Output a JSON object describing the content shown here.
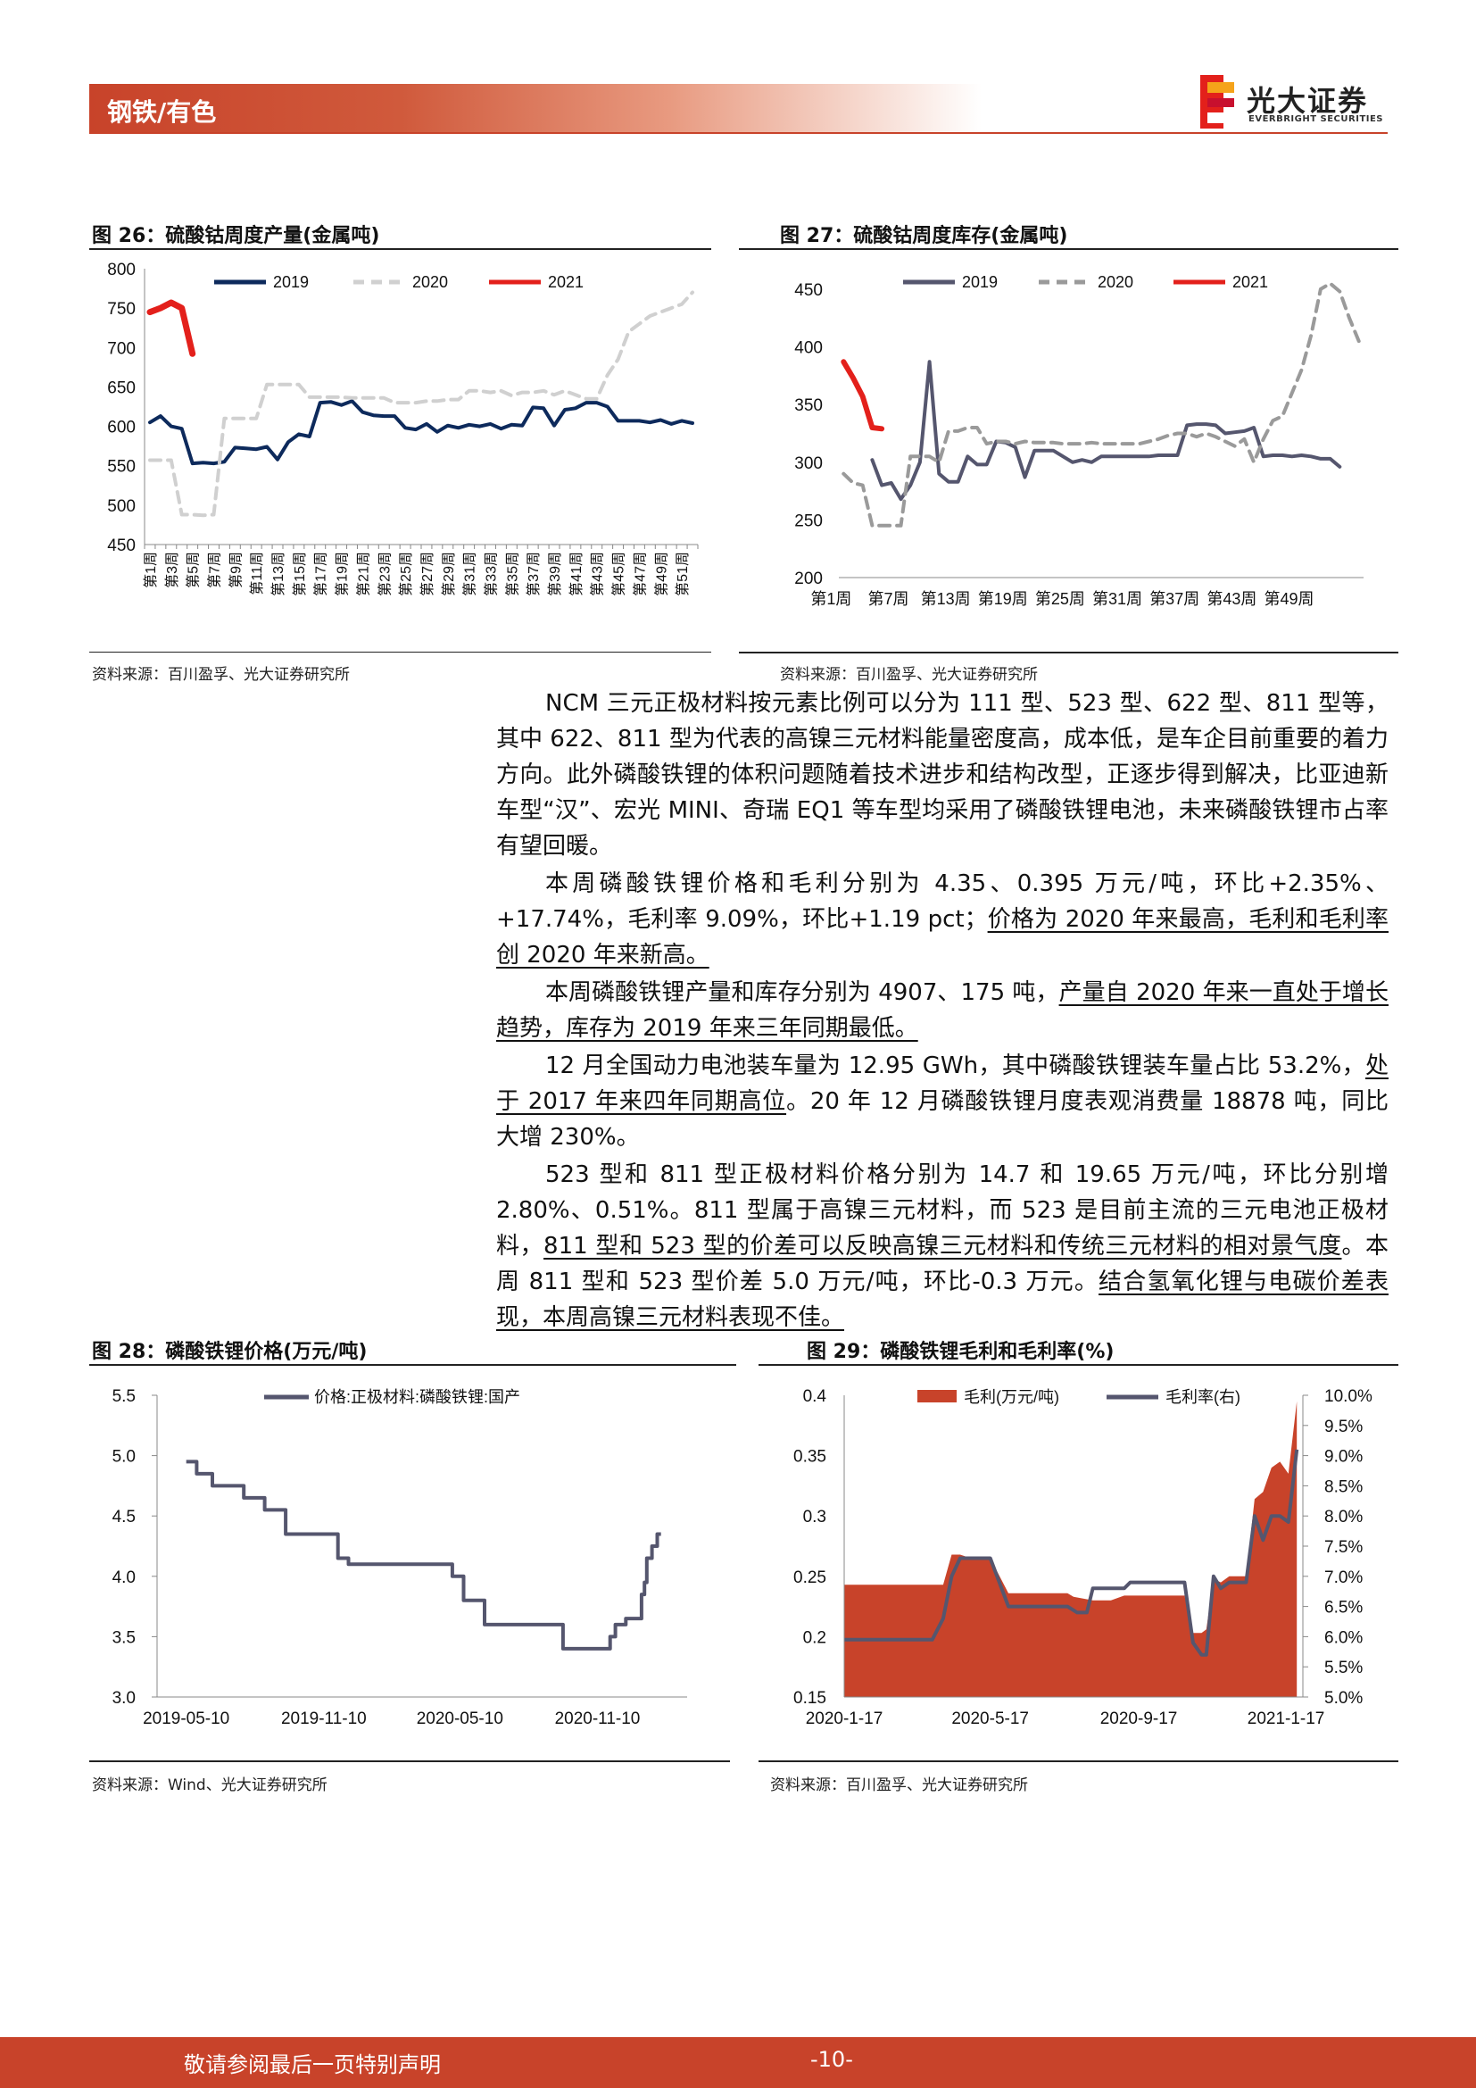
{
  "header": {
    "section": "钢铁/有色",
    "brand_cn": "光大证券",
    "brand_en": "EVERBRIGHT SECURITIES"
  },
  "colors": {
    "accent": "#c8432a",
    "navy": "#0d2a5c",
    "gray_line": "#55566e",
    "light_gray": "#d0d0d0",
    "red": "#e3201b",
    "fill_red": "#c8432a"
  },
  "figures": {
    "fig26": {
      "title": "图 26：硫酸钴周度产量(金属吨)",
      "source": "资料来源：百川盈孚、光大证券研究所"
    },
    "fig27": {
      "title": "图 27：硫酸钴周度库存(金属吨)",
      "source": "资料来源：百川盈孚、光大证券研究所"
    },
    "fig28": {
      "title": "图 28：磷酸铁锂价格(万元/吨)",
      "source": "资料来源：Wind、光大证券研究所"
    },
    "fig29": {
      "title": "图 29：磷酸铁锂毛利和毛利率(%)",
      "source": "资料来源：百川盈孚、光大证券研究所"
    }
  },
  "body": {
    "p1": "NCM 三元正极材料按元素比例可以分为 111 型、523 型、622 型、811 型等，其中 622、811 型为代表的高镍三元材料能量密度高，成本低，是车企目前重要的着力方向。此外磷酸铁锂的体积问题随着技术进步和结构改型，正逐步得到解决，比亚迪新车型“汉”、宏光 MINI、奇瑞 EQ1 等车型均采用了磷酸铁锂电池，未来磷酸铁锂市占率有望回暖。",
    "p2a": "本周磷酸铁锂价格和毛利分别为 4.35、0.395 万元/吨，环比+2.35%、+17.74%，毛利率 9.09%，环比+1.19 pct；",
    "p2u": "价格为 2020 年来最高，毛利和毛利率创 2020 年来新高。",
    "p3a": "本周磷酸铁锂产量和库存分别为 4907、175 吨，",
    "p3u": "产量自 2020 年来一直处于增长趋势，库存为 2019 年来三年同期最低。",
    "p4a": "12 月全国动力电池装车量为 12.95 GWh，其中磷酸铁锂装车量占比 53.2%，",
    "p4u": "处于 2017 年来四年同期高位",
    "p4b": "。20 年 12 月磷酸铁锂月度表观消费量 18878 吨，同比大增 230%。",
    "p5a": "523 型和 811 型正极材料价格分别为 14.7 和 19.65 万元/吨，环比分别增 2.80%、0.51%。811 型属于高镍三元材料，而 523 是目前主流的三元电池正极材料，",
    "p5u1": "811 型和 523 型的价差可以反映高镍三元材料和传统三元材料的相对景气度",
    "p5b": "。本周 811 型和 523 型价差 5.0 万元/吨，环比-0.3 万元。",
    "p5u2": "结合氢氧化锂与电碳价差表现，本周高镍三元材料表现不佳。"
  },
  "footer": {
    "note": "敬请参阅最后一页特别声明",
    "page": "-10-"
  },
  "chart_data": [
    {
      "id": "fig26",
      "type": "line",
      "x_tick_labels": [
        "第1周",
        "第3周",
        "第5周",
        "第7周",
        "第9周",
        "第11周",
        "第13周",
        "第15周",
        "第17周",
        "第19周",
        "第21周",
        "第23周",
        "第25周",
        "第27周",
        "第29周",
        "第31周",
        "第33周",
        "第35周",
        "第37周",
        "第39周",
        "第41周",
        "第43周",
        "第45周",
        "第47周",
        "第49周",
        "第51周"
      ],
      "ylim": [
        450,
        800
      ],
      "yticks": [
        450,
        500,
        550,
        600,
        650,
        700,
        750,
        800
      ],
      "legend_position": "top",
      "series": [
        {
          "name": "2019",
          "color": "#0d2a5c",
          "dash": false,
          "values": [
            605,
            613,
            600,
            597,
            553,
            554,
            553,
            555,
            573,
            572,
            571,
            574,
            558,
            580,
            590,
            587,
            630,
            631,
            627,
            632,
            618,
            614,
            613,
            613,
            598,
            596,
            603,
            593,
            601,
            598,
            602,
            600,
            603,
            597,
            602,
            601,
            624,
            623,
            601,
            621,
            623,
            630,
            630,
            625,
            607,
            607,
            607,
            605,
            608,
            603,
            607,
            604
          ]
        },
        {
          "name": "2020",
          "color": "#d0d0d0",
          "dash": true,
          "values": [
            557,
            557,
            557,
            488,
            488,
            487,
            488,
            610,
            610,
            610,
            610,
            653,
            653,
            653,
            653,
            637,
            637,
            637,
            637,
            636,
            636,
            636,
            636,
            630,
            630,
            630,
            632,
            632,
            634,
            634,
            645,
            645,
            643,
            645,
            639,
            643,
            643,
            645,
            640,
            645,
            640,
            635,
            635,
            665,
            685,
            720,
            730,
            740,
            745,
            750,
            755,
            770
          ]
        },
        {
          "name": "2021",
          "color": "#e3201b",
          "dash": false,
          "values": [
            745,
            750,
            757,
            750,
            692
          ]
        }
      ]
    },
    {
      "id": "fig27",
      "type": "line",
      "x_tick_labels": [
        "第1周",
        "第7周",
        "第13周",
        "第19周",
        "第25周",
        "第31周",
        "第37周",
        "第43周",
        "第49周"
      ],
      "ylim": [
        200,
        450
      ],
      "yticks": [
        200,
        250,
        300,
        350,
        400,
        450
      ],
      "legend_position": "top",
      "series": [
        {
          "name": "2019",
          "color": "#55566e",
          "dash": false,
          "values": [
            null,
            null,
            null,
            302,
            280,
            282,
            268,
            280,
            300,
            387,
            290,
            283,
            283,
            305,
            298,
            298,
            318,
            317,
            313,
            287,
            310,
            310,
            310,
            305,
            300,
            302,
            300,
            305,
            305,
            305,
            305,
            305,
            305,
            306,
            306,
            306,
            332,
            333,
            333,
            332,
            325,
            326,
            327,
            330,
            305,
            306,
            306,
            305,
            306,
            305,
            303,
            303,
            296
          ]
        },
        {
          "name": "2020",
          "color": "#9a9a9a",
          "dash": true,
          "values": [
            290,
            282,
            280,
            245,
            245,
            245,
            245,
            305,
            305,
            305,
            300,
            327,
            327,
            330,
            330,
            316,
            318,
            318,
            316,
            318,
            317,
            317,
            317,
            316,
            316,
            316,
            317,
            316,
            316,
            316,
            316,
            316,
            318,
            320,
            323,
            325,
            325,
            322,
            325,
            322,
            318,
            314,
            320,
            300,
            320,
            336,
            340,
            360,
            380,
            410,
            450,
            455,
            448,
            425,
            405
          ]
        },
        {
          "name": "2021",
          "color": "#e3201b",
          "dash": false,
          "values": [
            387,
            373,
            357,
            330,
            329
          ]
        }
      ]
    },
    {
      "id": "fig28",
      "type": "line",
      "x_tick_labels": [
        "2019-05-10",
        "2019-11-10",
        "2020-05-10",
        "2020-11-10"
      ],
      "ylim": [
        3.0,
        5.5
      ],
      "yticks": [
        3.0,
        3.5,
        4.0,
        4.5,
        5.0,
        5.5
      ],
      "legend_position": "top",
      "series": [
        {
          "name": "价格:正极材料:磷酸铁锂:国产",
          "color": "#55566e",
          "step": true,
          "points": [
            [
              "2019-05-10",
              4.95
            ],
            [
              "2019-05-24",
              4.85
            ],
            [
              "2019-06-14",
              4.75
            ],
            [
              "2019-07-26",
              4.65
            ],
            [
              "2019-08-23",
              4.55
            ],
            [
              "2019-09-20",
              4.35
            ],
            [
              "2019-11-29",
              4.15
            ],
            [
              "2019-12-13",
              4.1
            ],
            [
              "2020-04-30",
              4.0
            ],
            [
              "2020-05-15",
              3.8
            ],
            [
              "2020-06-12",
              3.6
            ],
            [
              "2020-09-25",
              3.4
            ],
            [
              "2020-11-27",
              3.5
            ],
            [
              "2020-12-04",
              3.6
            ],
            [
              "2020-12-18",
              3.65
            ],
            [
              "2021-01-08",
              3.85
            ],
            [
              "2021-01-12",
              3.95
            ],
            [
              "2021-01-15",
              4.15
            ],
            [
              "2021-01-22",
              4.25
            ],
            [
              "2021-01-29",
              4.35
            ],
            [
              "2021-02-03",
              4.35
            ]
          ]
        }
      ]
    },
    {
      "id": "fig29",
      "type": "area",
      "x_tick_labels": [
        "2020-1-17",
        "2020-5-17",
        "2020-9-17",
        "2021-1-17"
      ],
      "ylim_left": [
        0.15,
        0.4
      ],
      "yticks_left": [
        0.15,
        0.2,
        0.25,
        0.3,
        0.35,
        0.4
      ],
      "ylim_right": [
        5.0,
        10.0
      ],
      "yticks_right": [
        "5.0%",
        "5.5%",
        "6.0%",
        "6.5%",
        "7.0%",
        "7.5%",
        "8.0%",
        "8.5%",
        "9.0%",
        "9.5%",
        "10.0%"
      ],
      "legend_position": "top",
      "series": [
        {
          "name": "毛利(万元/吨)",
          "color": "#c8432a",
          "axis": "left",
          "points": [
            [
              "2020-01-17",
              0.243
            ],
            [
              "2020-03-15",
              0.243
            ],
            [
              "2020-04-08",
              0.243
            ],
            [
              "2020-04-15",
              0.268
            ],
            [
              "2020-04-22",
              0.268
            ],
            [
              "2020-05-01",
              0.265
            ],
            [
              "2020-05-17",
              0.265
            ],
            [
              "2020-06-01",
              0.236
            ],
            [
              "2020-07-20",
              0.236
            ],
            [
              "2020-07-25",
              0.233
            ],
            [
              "2020-08-10",
              0.23
            ],
            [
              "2020-08-25",
              0.23
            ],
            [
              "2020-09-05",
              0.234
            ],
            [
              "2020-10-25",
              0.234
            ],
            [
              "2020-11-01",
              0.203
            ],
            [
              "2020-11-08",
              0.203
            ],
            [
              "2020-11-12",
              0.206
            ],
            [
              "2020-11-18",
              0.248
            ],
            [
              "2020-11-24",
              0.245
            ],
            [
              "2020-12-01",
              0.25
            ],
            [
              "2020-12-15",
              0.25
            ],
            [
              "2020-12-22",
              0.314
            ],
            [
              "2020-12-29",
              0.32
            ],
            [
              "2021-01-05",
              0.34
            ],
            [
              "2021-01-12",
              0.345
            ],
            [
              "2021-01-19",
              0.335
            ],
            [
              "2021-01-26",
              0.395
            ]
          ]
        },
        {
          "name": "毛利率(右)",
          "color": "#55566e",
          "axis": "right",
          "points": [
            [
              "2020-01-17",
              5.95
            ],
            [
              "2020-03-30",
              5.95
            ],
            [
              "2020-04-08",
              6.3
            ],
            [
              "2020-04-15",
              7.0
            ],
            [
              "2020-04-22",
              7.3
            ],
            [
              "2020-05-17",
              7.3
            ],
            [
              "2020-06-01",
              6.5
            ],
            [
              "2020-07-20",
              6.5
            ],
            [
              "2020-07-28",
              6.4
            ],
            [
              "2020-08-05",
              6.4
            ],
            [
              "2020-08-10",
              6.8
            ],
            [
              "2020-09-05",
              6.8
            ],
            [
              "2020-09-10",
              6.9
            ],
            [
              "2020-10-25",
              6.9
            ],
            [
              "2020-11-01",
              5.9
            ],
            [
              "2020-11-08",
              5.7
            ],
            [
              "2020-11-12",
              5.7
            ],
            [
              "2020-11-18",
              7.0
            ],
            [
              "2020-11-24",
              6.8
            ],
            [
              "2020-12-01",
              6.9
            ],
            [
              "2020-12-15",
              6.9
            ],
            [
              "2020-12-22",
              8.0
            ],
            [
              "2020-12-29",
              7.6
            ],
            [
              "2021-01-05",
              8.0
            ],
            [
              "2021-01-12",
              8.0
            ],
            [
              "2021-01-19",
              7.9
            ],
            [
              "2021-01-26",
              9.1
            ]
          ]
        }
      ]
    }
  ]
}
